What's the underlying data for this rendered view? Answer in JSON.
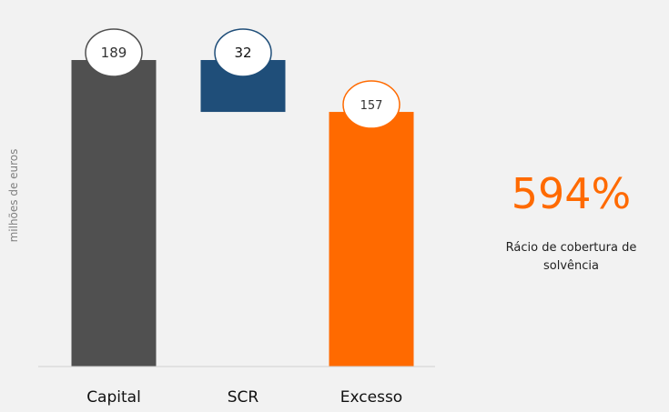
{
  "chart_data": {
    "type": "bar",
    "subtype": "waterfall",
    "ylabel": "milhões de euros",
    "ylim": [
      0,
      189
    ],
    "grid": false,
    "categories": [
      "Capital",
      "SCR",
      "Excesso"
    ],
    "bars": [
      {
        "category": "Capital",
        "value": 189,
        "label": "189",
        "base": 0,
        "top": 189,
        "color": "#505050"
      },
      {
        "category": "SCR",
        "value": 32,
        "label": "32",
        "base": 157,
        "top": 189,
        "color": "#1f4e79"
      },
      {
        "category": "Excesso",
        "value": 157,
        "label": "157",
        "base": 0,
        "top": 157,
        "color": "#ff6a00"
      }
    ]
  },
  "ratio": {
    "value": "594%",
    "label": "Rácio de cobertura de solvência",
    "color": "#ff6a00"
  }
}
